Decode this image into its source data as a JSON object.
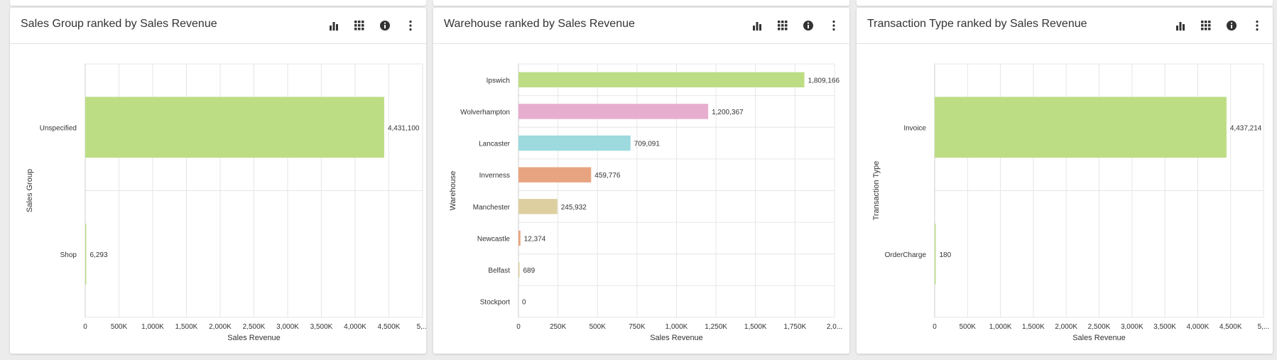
{
  "panels": [
    {
      "title": "Sales Group ranked by Sales Revenue",
      "icons": [
        "bar-chart-icon",
        "grid-icon",
        "info-icon",
        "more-vertical-icon"
      ]
    },
    {
      "title": "Warehouse ranked by Sales Revenue",
      "icons": [
        "bar-chart-icon",
        "grid-icon",
        "info-icon",
        "more-vertical-icon"
      ]
    },
    {
      "title": "Transaction Type ranked by Sales Revenue",
      "icons": [
        "bar-chart-icon",
        "grid-icon",
        "info-icon",
        "more-vertical-icon"
      ]
    }
  ],
  "chart_data": [
    {
      "type": "bar",
      "orientation": "horizontal",
      "categories": [
        "Unspecified",
        "Shop"
      ],
      "values": [
        4431100,
        6293
      ],
      "data_labels": [
        "4,431,100",
        "6,293"
      ],
      "colors": [
        "#bddd85",
        "#bddd85"
      ],
      "xlabel": "Sales Revenue",
      "ylabel": "Sales Group",
      "xlim": [
        0,
        5000000
      ],
      "ticks": [
        "0",
        "500K",
        "1,000K",
        "1,500K",
        "2,000K",
        "2,500K",
        "3,000K",
        "3,500K",
        "4,000K",
        "4,500K",
        "5,..."
      ],
      "grid": true
    },
    {
      "type": "bar",
      "orientation": "horizontal",
      "categories": [
        "Ipswich",
        "Wolverhampton",
        "Lancaster",
        "Inverness",
        "Manchester",
        "Newcastle",
        "Belfast",
        "Stockport"
      ],
      "values": [
        1809166,
        1200367,
        709091,
        459776,
        245932,
        12374,
        689,
        0
      ],
      "data_labels": [
        "1,809,166",
        "1,200,367",
        "709,091",
        "459,776",
        "245,932",
        "12,374",
        "689",
        "0"
      ],
      "colors": [
        "#bddd85",
        "#e7adcf",
        "#9cdade",
        "#e8a480",
        "#ddcfa0",
        "#e8a480",
        "#ddcfa0",
        "#ddcfa0"
      ],
      "xlabel": "Sales Revenue",
      "ylabel": "Warehouse",
      "xlim": [
        0,
        2000000
      ],
      "ticks": [
        "0",
        "250K",
        "500K",
        "750K",
        "1,000K",
        "1,250K",
        "1,500K",
        "1,750K",
        "2,0..."
      ],
      "grid": true
    },
    {
      "type": "bar",
      "orientation": "horizontal",
      "categories": [
        "Invoice",
        "OrderCharge"
      ],
      "values": [
        4437214,
        180
      ],
      "data_labels": [
        "4,437,214",
        "180"
      ],
      "colors": [
        "#bddd85",
        "#bddd85"
      ],
      "xlabel": "Sales Revenue",
      "ylabel": "Transaction Type",
      "xlim": [
        0,
        5000000
      ],
      "ticks": [
        "0",
        "500K",
        "1,000K",
        "1,500K",
        "2,000K",
        "2,500K",
        "3,000K",
        "3,500K",
        "4,000K",
        "4,500K",
        "5,..."
      ],
      "grid": true
    }
  ]
}
